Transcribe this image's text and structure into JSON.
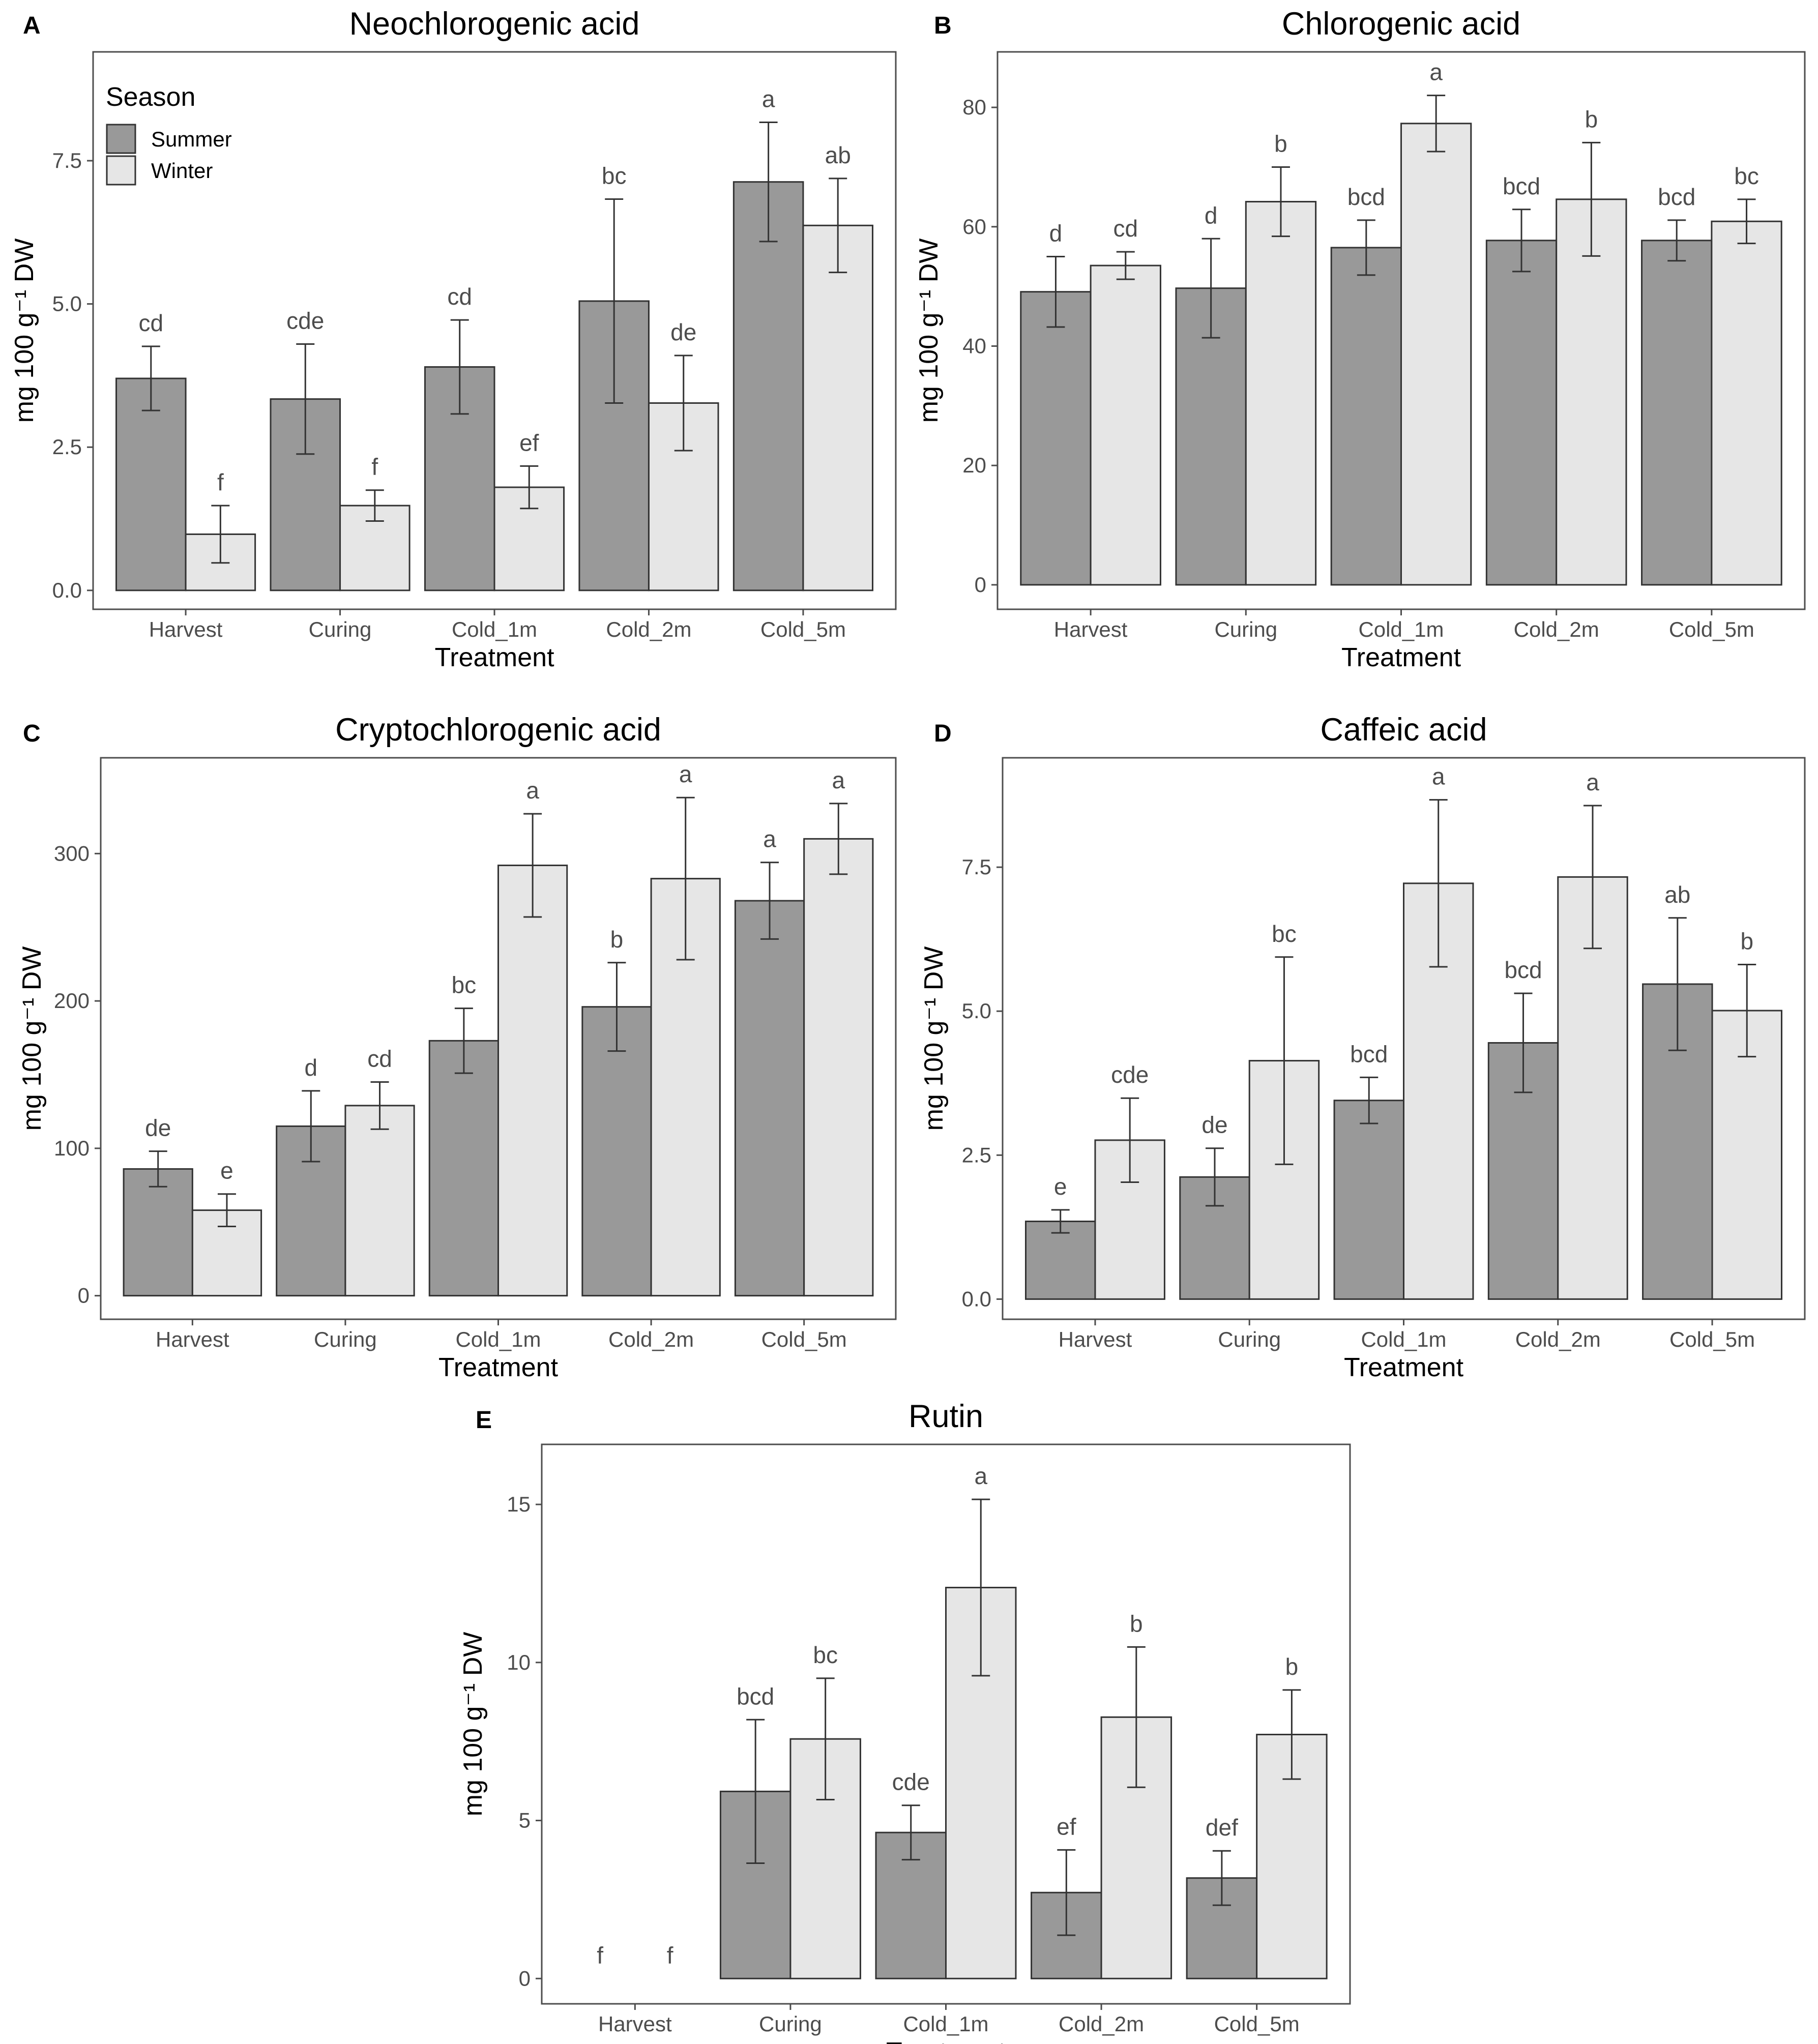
{
  "colors": {
    "summer": "#999999",
    "winter": "#e6e6e6",
    "bar_stroke": "#333333",
    "panel_border": "#4d4d4d",
    "tick_text": "#4d4d4d"
  },
  "legend": {
    "title": "Season",
    "items": [
      {
        "label": "Summer",
        "color": "#999999"
      },
      {
        "label": "Winter",
        "color": "#e6e6e6"
      }
    ]
  },
  "chart_data": [
    {
      "panel": "A",
      "type": "bar",
      "title": "Neochlorogenic acid",
      "xlabel": "Treatment",
      "ylabel": "mg 100 g⁻¹ DW",
      "categories": [
        "Harvest",
        "Curing",
        "Cold_1m",
        "Cold_2m",
        "Cold_5m"
      ],
      "ylim": [
        -0.33,
        9.4
      ],
      "yticks": [
        0,
        2.5,
        5,
        7.5
      ],
      "ytick_labels": [
        "0.0",
        "2.5",
        "5.0",
        "7.5"
      ],
      "series": [
        {
          "name": "Summer",
          "values": [
            3.7,
            3.34,
            3.9,
            5.05,
            7.13
          ],
          "errors": [
            0.56,
            0.96,
            0.82,
            1.78,
            1.04
          ],
          "labels": [
            "cd",
            "cde",
            "cd",
            "bc",
            "a"
          ]
        },
        {
          "name": "Winter",
          "values": [
            0.98,
            1.48,
            1.8,
            3.27,
            6.37
          ],
          "errors": [
            0.5,
            0.27,
            0.37,
            0.83,
            0.82
          ],
          "labels": [
            "f",
            "f",
            "ef",
            "de",
            "ab"
          ]
        }
      ]
    },
    {
      "panel": "B",
      "type": "bar",
      "title": "Chlorogenic acid",
      "xlabel": "Treatment",
      "ylabel": "mg 100 g⁻¹ DW",
      "categories": [
        "Harvest",
        "Curing",
        "Cold_1m",
        "Cold_2m",
        "Cold_5m"
      ],
      "ylim": [
        -4.1,
        89.3
      ],
      "yticks": [
        0,
        20,
        40,
        60,
        80
      ],
      "ytick_labels": [
        "0",
        "20",
        "40",
        "60",
        "80"
      ],
      "series": [
        {
          "name": "Summer",
          "values": [
            49.1,
            49.7,
            56.5,
            57.7,
            57.7
          ],
          "errors": [
            5.9,
            8.3,
            4.6,
            5.2,
            3.4
          ],
          "labels": [
            "d",
            "d",
            "bcd",
            "bcd",
            "bcd"
          ]
        },
        {
          "name": "Winter",
          "values": [
            53.5,
            64.2,
            77.3,
            64.6,
            60.9
          ],
          "errors": [
            2.3,
            5.8,
            4.7,
            9.5,
            3.7
          ],
          "labels": [
            "cd",
            "b",
            "a",
            "b",
            "bc"
          ]
        }
      ]
    },
    {
      "panel": "C",
      "type": "bar",
      "title": "Cryptochlorogenic acid",
      "xlabel": "Treatment",
      "ylabel": "mg 100 g⁻¹ DW",
      "categories": [
        "Harvest",
        "Curing",
        "Cold_1m",
        "Cold_2m",
        "Cold_5m"
      ],
      "ylim": [
        -16,
        365
      ],
      "yticks": [
        0,
        100,
        200,
        300
      ],
      "ytick_labels": [
        "0",
        "100",
        "200",
        "300"
      ],
      "series": [
        {
          "name": "Summer",
          "values": [
            86,
            115,
            173,
            196,
            268
          ],
          "errors": [
            12,
            24,
            22,
            30,
            26
          ],
          "labels": [
            "de",
            "d",
            "bc",
            "b",
            "a"
          ]
        },
        {
          "name": "Winter",
          "values": [
            58,
            129,
            292,
            283,
            310
          ],
          "errors": [
            11,
            16,
            35,
            55,
            24
          ],
          "labels": [
            "e",
            "cd",
            "a",
            "a",
            "a"
          ]
        }
      ]
    },
    {
      "panel": "D",
      "type": "bar",
      "title": "Caffeic acid",
      "xlabel": "Treatment",
      "ylabel": "mg 100 g⁻¹ DW",
      "categories": [
        "Harvest",
        "Curing",
        "Cold_1m",
        "Cold_2m",
        "Cold_5m"
      ],
      "ylim": [
        -0.35,
        9.4
      ],
      "yticks": [
        0,
        2.5,
        5,
        7.5
      ],
      "ytick_labels": [
        "0.0",
        "2.5",
        "5.0",
        "7.5"
      ],
      "series": [
        {
          "name": "Summer",
          "values": [
            1.35,
            2.12,
            3.45,
            4.45,
            5.47
          ],
          "errors": [
            0.2,
            0.5,
            0.4,
            0.86,
            1.15
          ],
          "labels": [
            "e",
            "de",
            "bcd",
            "bcd",
            "ab"
          ]
        },
        {
          "name": "Winter",
          "values": [
            2.76,
            4.14,
            7.22,
            7.33,
            5.01
          ],
          "errors": [
            0.73,
            1.8,
            1.45,
            1.24,
            0.8
          ],
          "labels": [
            "cde",
            "bc",
            "a",
            "a",
            "b"
          ]
        }
      ]
    },
    {
      "panel": "E",
      "type": "bar",
      "title": "Rutin",
      "xlabel": "Treatment",
      "ylabel": "mg 100 g⁻¹ DW",
      "categories": [
        "Harvest",
        "Curing",
        "Cold_1m",
        "Cold_2m",
        "Cold_5m"
      ],
      "ylim": [
        -0.8,
        16.9
      ],
      "yticks": [
        0,
        5,
        10,
        15
      ],
      "ytick_labels": [
        "0",
        "5",
        "10",
        "15"
      ],
      "series": [
        {
          "name": "Summer",
          "values": [
            0,
            5.92,
            4.62,
            2.72,
            3.18
          ],
          "errors": [
            0,
            2.27,
            0.86,
            1.35,
            0.86
          ],
          "labels": [
            "f",
            "bcd",
            "cde",
            "ef",
            "def"
          ]
        },
        {
          "name": "Winter",
          "values": [
            0,
            7.58,
            12.37,
            8.27,
            7.72
          ],
          "errors": [
            0,
            1.92,
            2.79,
            2.22,
            1.41
          ],
          "labels": [
            "f",
            "bc",
            "a",
            "b",
            "b"
          ]
        }
      ]
    }
  ]
}
